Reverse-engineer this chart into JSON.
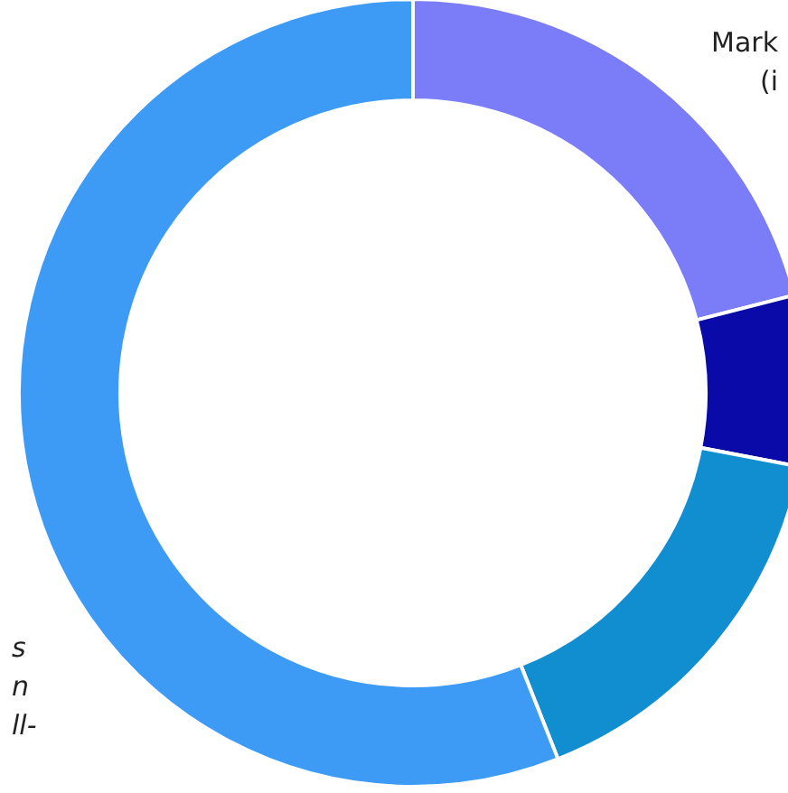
{
  "chart_data": {
    "type": "donut",
    "categories": [
      null,
      null,
      null,
      null
    ],
    "values": [
      21,
      7,
      16,
      56
    ],
    "colors": [
      "#7b7cf7",
      "#0a0aa8",
      "#108ed0",
      "#3d9bf5"
    ],
    "annotations": [
      "Mark\n(i",
      "s\nn\nll-"
    ]
  }
}
